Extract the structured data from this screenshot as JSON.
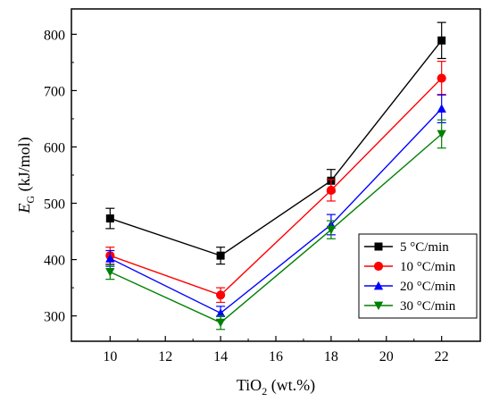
{
  "chart_data": {
    "type": "line",
    "xlabel": {
      "main": "TiO",
      "sub": "2",
      "rest": " (wt.%)"
    },
    "ylabel": {
      "main": "E",
      "sub": "G",
      "rest": " (kJ/mol)"
    },
    "x": [
      10,
      14,
      18,
      22
    ],
    "xlim": [
      8.6,
      23.4
    ],
    "ylim": [
      255,
      845
    ],
    "xticks": [
      10,
      12,
      14,
      16,
      18,
      20,
      22
    ],
    "yticks": [
      300,
      400,
      500,
      600,
      700,
      800
    ],
    "grid": false,
    "legend_position": "bottom-right",
    "series": [
      {
        "name": "5 °C/min",
        "color": "#000000",
        "marker": "square",
        "values": [
          473,
          407,
          540,
          789
        ],
        "errors": [
          18,
          15,
          20,
          32
        ]
      },
      {
        "name": "10 °C/min",
        "color": "#ff0000",
        "marker": "circle",
        "values": [
          407,
          337,
          523,
          722
        ],
        "errors": [
          15,
          13,
          19,
          30
        ]
      },
      {
        "name": "20 °C/min",
        "color": "#0000ff",
        "marker": "triangle-up",
        "values": [
          402,
          305,
          462,
          668
        ],
        "errors": [
          14,
          12,
          18,
          25
        ]
      },
      {
        "name": "30 °C/min",
        "color": "#008000",
        "marker": "triangle-down",
        "values": [
          378,
          288,
          453,
          623
        ],
        "errors": [
          13,
          12,
          16,
          25
        ]
      }
    ]
  }
}
